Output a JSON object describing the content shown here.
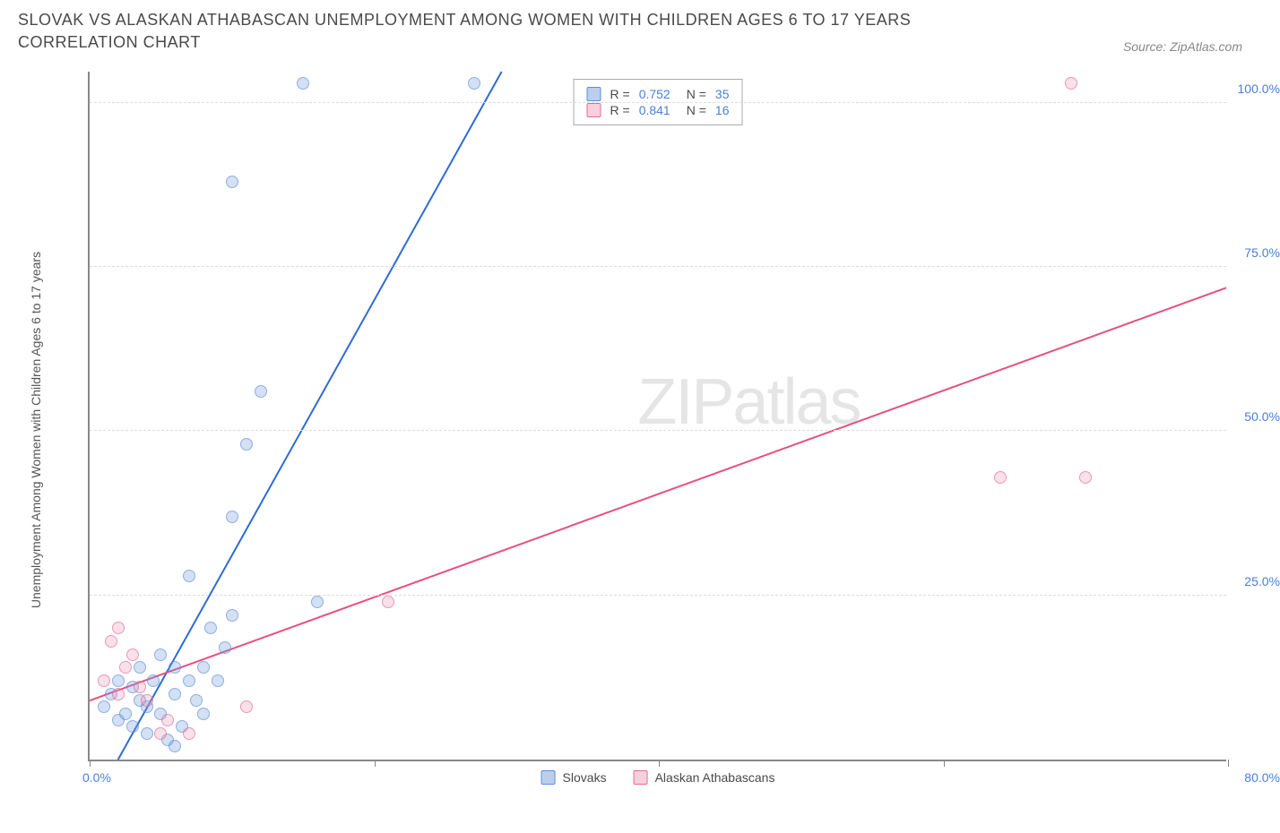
{
  "title": "SLOVAK VS ALASKAN ATHABASCAN UNEMPLOYMENT AMONG WOMEN WITH CHILDREN AGES 6 TO 17 YEARS CORRELATION CHART",
  "source": "Source: ZipAtlas.com",
  "watermark_a": "ZIP",
  "watermark_b": "atlas",
  "chart": {
    "type": "scatter",
    "y_axis_label": "Unemployment Among Women with Children Ages 6 to 17 years",
    "xlim": [
      0,
      80
    ],
    "ylim": [
      0,
      105
    ],
    "x_tick_positions": [
      0,
      20,
      40,
      60,
      80
    ],
    "x_tick_labels": {
      "first": "0.0%",
      "last": "80.0%"
    },
    "y_gridlines": [
      25,
      50,
      75,
      100
    ],
    "y_tick_labels": [
      "25.0%",
      "50.0%",
      "75.0%",
      "100.0%"
    ],
    "background_color": "#ffffff",
    "grid_color": "#dddddd",
    "axis_color": "#888888",
    "tick_label_color": "#4a7fd8",
    "axis_label_color": "#555555",
    "series": [
      {
        "name": "Slovaks",
        "color_fill": "rgba(120,160,220,0.45)",
        "color_stroke": "#5a8fd8",
        "line_color": "#2e6bd6",
        "line_width": 2,
        "r_value": "0.752",
        "n_value": "35",
        "trend": {
          "x1": 2,
          "y1": 0,
          "x2": 29,
          "y2": 105
        },
        "points": [
          [
            1,
            8
          ],
          [
            1.5,
            10
          ],
          [
            2,
            6
          ],
          [
            2,
            12
          ],
          [
            2.5,
            7
          ],
          [
            3,
            5
          ],
          [
            3,
            11
          ],
          [
            3.5,
            9
          ],
          [
            3.5,
            14
          ],
          [
            4,
            8
          ],
          [
            4,
            4
          ],
          [
            4.5,
            12
          ],
          [
            5,
            7
          ],
          [
            5,
            16
          ],
          [
            5.5,
            3
          ],
          [
            6,
            10
          ],
          [
            6,
            14
          ],
          [
            6.5,
            5
          ],
          [
            7,
            12
          ],
          [
            7.5,
            9
          ],
          [
            8,
            14
          ],
          [
            8,
            7
          ],
          [
            8.5,
            20
          ],
          [
            9,
            12
          ],
          [
            9.5,
            17
          ],
          [
            10,
            22
          ],
          [
            7,
            28
          ],
          [
            10,
            37
          ],
          [
            11,
            48
          ],
          [
            12,
            56
          ],
          [
            10,
            88
          ],
          [
            15,
            103
          ],
          [
            27,
            103
          ],
          [
            16,
            24
          ],
          [
            6,
            2
          ]
        ]
      },
      {
        "name": "Alaskan Athabascans",
        "color_fill": "rgba(240,150,180,0.4)",
        "color_stroke": "#e56a9a",
        "line_color": "#e5517f",
        "line_width": 2,
        "r_value": "0.841",
        "n_value": "16",
        "trend": {
          "x1": 0,
          "y1": 9,
          "x2": 80,
          "y2": 72
        },
        "points": [
          [
            1,
            12
          ],
          [
            1.5,
            18
          ],
          [
            2,
            10
          ],
          [
            2,
            20
          ],
          [
            2.5,
            14
          ],
          [
            3,
            16
          ],
          [
            3.5,
            11
          ],
          [
            4,
            9
          ],
          [
            5,
            4
          ],
          [
            5.5,
            6
          ],
          [
            7,
            4
          ],
          [
            11,
            8
          ],
          [
            21,
            24
          ],
          [
            64,
            43
          ],
          [
            70,
            43
          ],
          [
            69,
            103
          ]
        ]
      }
    ],
    "legend": {
      "rows": [
        {
          "swatch": "blue",
          "r_label": "R =",
          "r_val": "0.752",
          "n_label": "N =",
          "n_val": "35"
        },
        {
          "swatch": "pink",
          "r_label": "R =",
          "r_val": "0.841",
          "n_label": "N =",
          "n_val": "16"
        }
      ]
    },
    "bottom_legend": [
      {
        "swatch": "blue",
        "label": "Slovaks"
      },
      {
        "swatch": "pink",
        "label": "Alaskan Athabascans"
      }
    ]
  }
}
